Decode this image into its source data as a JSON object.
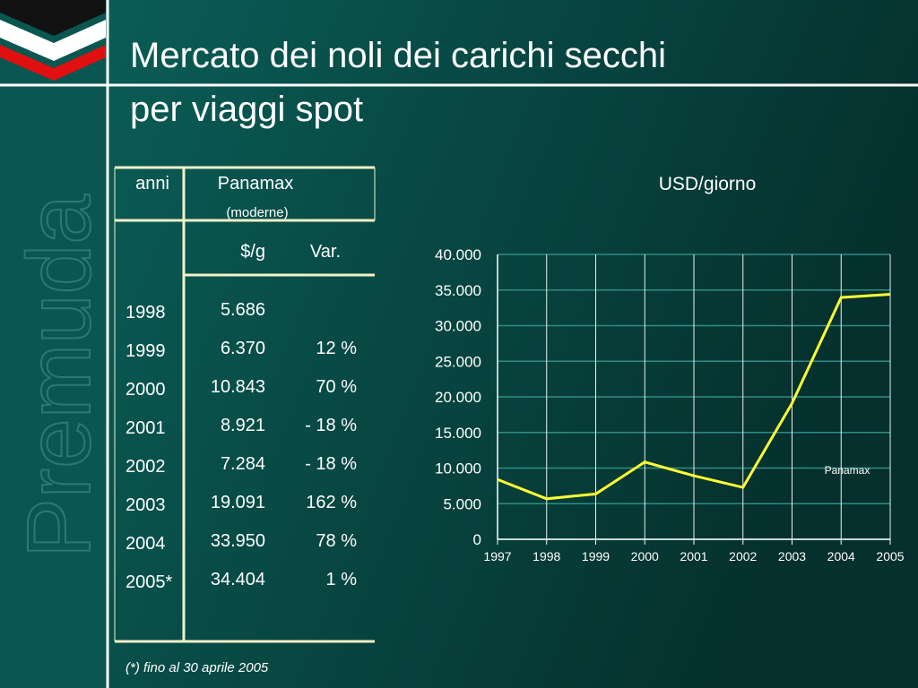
{
  "title_lines": [
    "Mercato dei noli dei carichi secchi",
    "per viaggi spot"
  ],
  "brand": "Premuda",
  "table": {
    "headers": [
      "anni",
      "Panamax",
      "(moderne)",
      "$/g",
      "Var."
    ],
    "rows": [
      [
        "1998",
        "5.686"
      ],
      [
        "1999",
        "6.370",
        "12 %"
      ],
      [
        "2000",
        "10.843",
        "70 %"
      ],
      [
        "2001",
        "8.921",
        "- 18 %"
      ],
      [
        "2002",
        "7.284",
        "- 18 %"
      ],
      [
        "2003",
        "19.091",
        "162 %"
      ],
      [
        "2004",
        "33.950",
        "78 %"
      ],
      [
        "2005*",
        "34.404",
        "1 %"
      ]
    ]
  },
  "footnote": "(*) fino al 30 aprile 2005",
  "chart_data": {
    "type": "line",
    "title": "USD/giorno",
    "categories": [
      "1997",
      "1998",
      "1999",
      "2000",
      "2001",
      "2002",
      "2003",
      "2004",
      "2005"
    ],
    "series": [
      {
        "name": "Panamax",
        "color": "#ffff33",
        "values": [
          8400,
          5686,
          6370,
          10843,
          8921,
          7284,
          19091,
          33950,
          34404
        ]
      }
    ],
    "ylim": [
      0,
      40000
    ],
    "yticks": [
      0,
      {
        "value": 5000,
        "label": "5.000"
      },
      {
        "value": 10000,
        "label": "10.000"
      },
      {
        "value": 15000,
        "label": "15.000"
      },
      {
        "value": 20000,
        "label": "20.000"
      },
      {
        "value": 25000,
        "label": "25.000"
      },
      {
        "value": 30000,
        "label": "30.000"
      },
      {
        "value": 35000,
        "label": "35.000"
      },
      {
        "value": 40000,
        "label": "40.000"
      }
    ],
    "grid": true
  }
}
